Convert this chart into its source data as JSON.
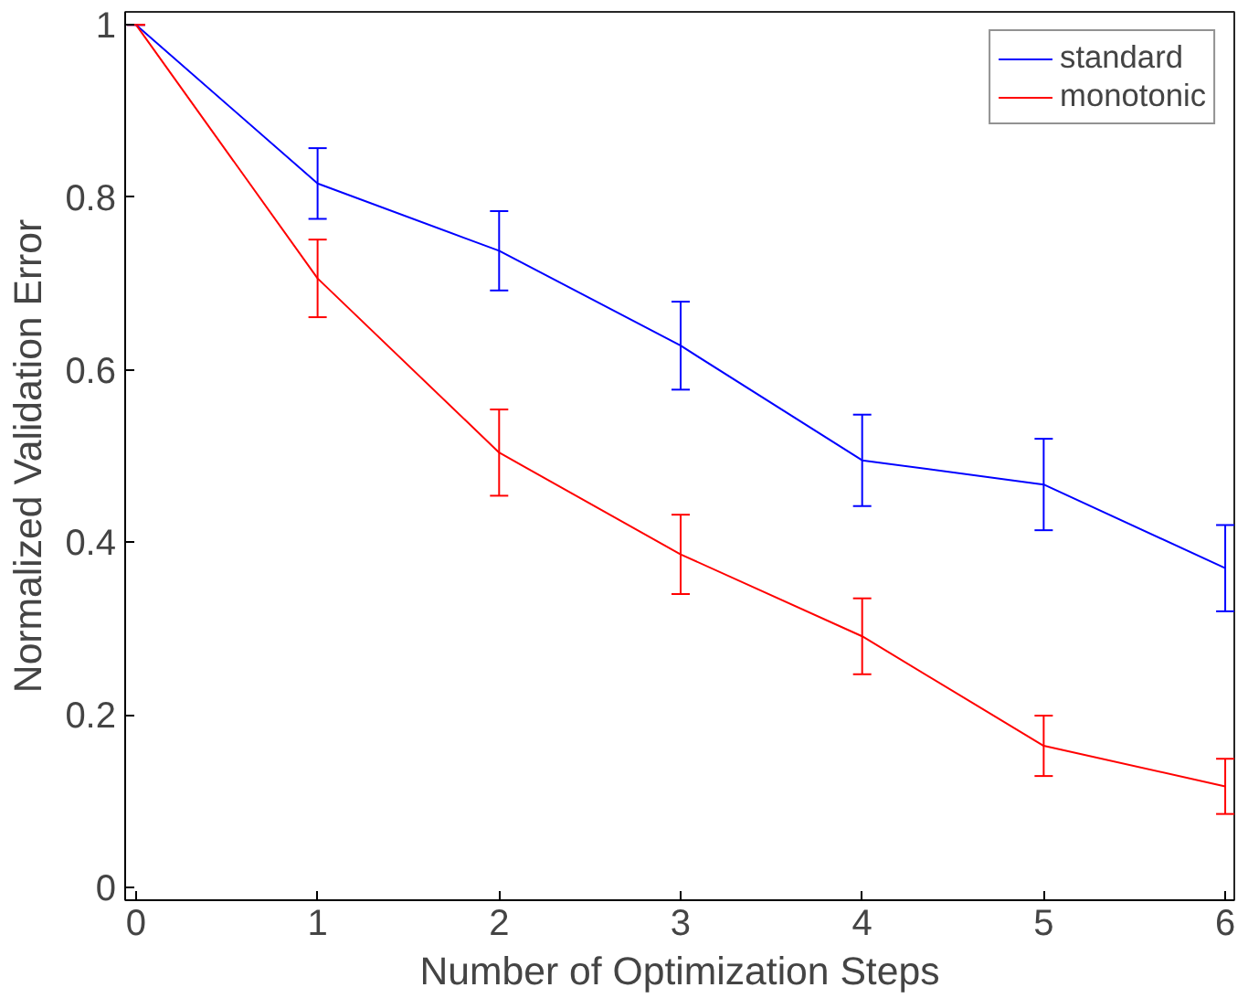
{
  "chart_data": {
    "type": "line",
    "xlabel": "Number of Optimization Steps",
    "ylabel": "Normalized Validation Error",
    "x": [
      0,
      1,
      2,
      3,
      4,
      5,
      6
    ],
    "series": [
      {
        "name": "standard",
        "color": "#0000ff",
        "values": [
          1.0,
          0.816,
          0.738,
          0.628,
          0.495,
          0.467,
          0.37
        ],
        "errors": [
          0,
          0.041,
          0.046,
          0.051,
          0.053,
          0.053,
          0.05
        ]
      },
      {
        "name": "monotonic",
        "color": "#ff0000",
        "values": [
          1.0,
          0.706,
          0.504,
          0.386,
          0.291,
          0.164,
          0.117
        ],
        "errors": [
          0,
          0.045,
          0.05,
          0.046,
          0.044,
          0.035,
          0.032
        ]
      }
    ],
    "xlim": [
      -0.06,
      6.05
    ],
    "ylim": [
      -0.015,
      1.015
    ],
    "xticks": [
      0,
      1,
      2,
      3,
      4,
      5,
      6
    ],
    "yticks": [
      0,
      0.2,
      0.4,
      0.6,
      0.8,
      1
    ],
    "grid": false,
    "legend": "top right",
    "marker": "none",
    "line_style": "solid"
  }
}
